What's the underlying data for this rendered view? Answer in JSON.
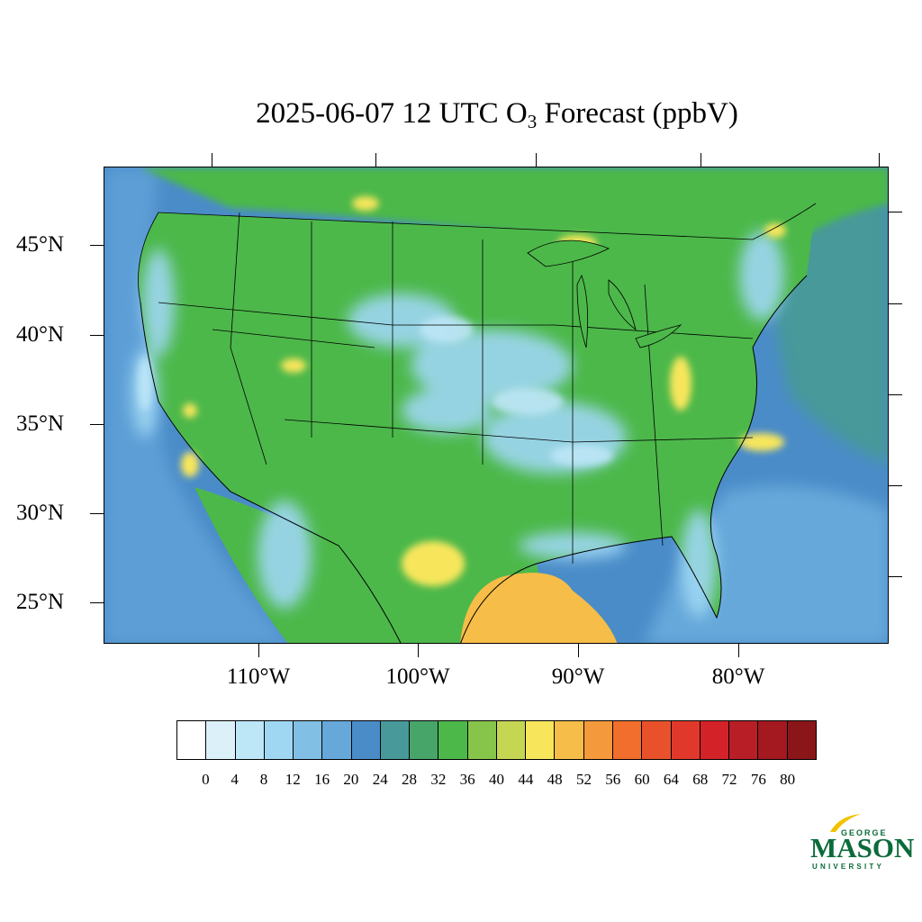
{
  "title": {
    "prefix": "2025-06-07 12 UTC O",
    "subscript": "3",
    "suffix": " Forecast (ppbV)"
  },
  "map": {
    "region": "Contiguous United States",
    "field": "Ozone forecast surface",
    "background_ocean_color": "#4a8fcc",
    "land_colors": [
      "#4cb84a",
      "#46a86a",
      "#6aa9da",
      "#bfe3f5",
      "#f6e85c",
      "#f4bb49"
    ]
  },
  "lat_labels": [
    "45°N",
    "40°N",
    "35°N",
    "30°N",
    "25°N"
  ],
  "lon_labels": [
    "110°W",
    "100°W",
    "90°W",
    "80°W"
  ],
  "colorbar": {
    "labels": [
      "0",
      "4",
      "8",
      "12",
      "16",
      "20",
      "24",
      "28",
      "32",
      "36",
      "40",
      "44",
      "48",
      "52",
      "56",
      "60",
      "64",
      "68",
      "72",
      "76",
      "80"
    ],
    "colors": [
      "#ffffff",
      "#dcf0fa",
      "#bde6f7",
      "#9fd7f3",
      "#82bfe4",
      "#66a8da",
      "#4a8cc8",
      "#47999a",
      "#47a56a",
      "#4cb84a",
      "#86c54a",
      "#c5d653",
      "#f7e65b",
      "#f6bd48",
      "#f59a3c",
      "#f26e2c",
      "#e9512b",
      "#e0392b",
      "#d42229",
      "#b81e25",
      "#a3191f",
      "#8b1619"
    ]
  },
  "logo": {
    "line1": "GEORGE",
    "line2": "MASON",
    "line3": "UNIVERSITY",
    "color": "#0b6b3a",
    "accent": "#f2c200"
  }
}
